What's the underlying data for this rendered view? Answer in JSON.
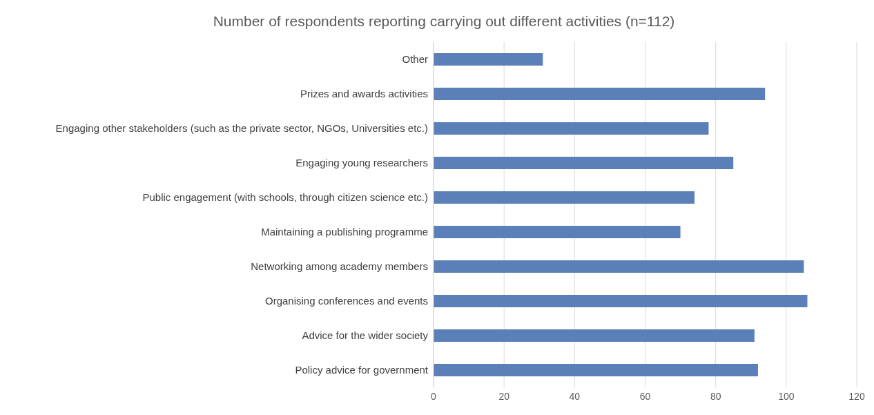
{
  "chart_data": {
    "type": "bar",
    "orientation": "horizontal",
    "title": "Number of respondents reporting carrying out different activities (n=112)",
    "categories": [
      "Other",
      "Prizes and awards activities",
      "Engaging other stakeholders (such as the private sector, NGOs, Universities etc.)",
      "Engaging young researchers",
      "Public engagement (with schools, through citizen science etc.)",
      "Maintaining a publishing programme",
      "Networking among academy members",
      "Organising conferences and events",
      "Advice for the wider society",
      "Policy advice for government"
    ],
    "values": [
      31,
      94,
      78,
      85,
      74,
      70,
      105,
      106,
      91,
      92
    ],
    "color": "#5b7fb8",
    "xlim": [
      0,
      120
    ],
    "xticks": [
      0,
      20,
      40,
      60,
      80,
      100,
      120
    ],
    "grid": "x"
  }
}
